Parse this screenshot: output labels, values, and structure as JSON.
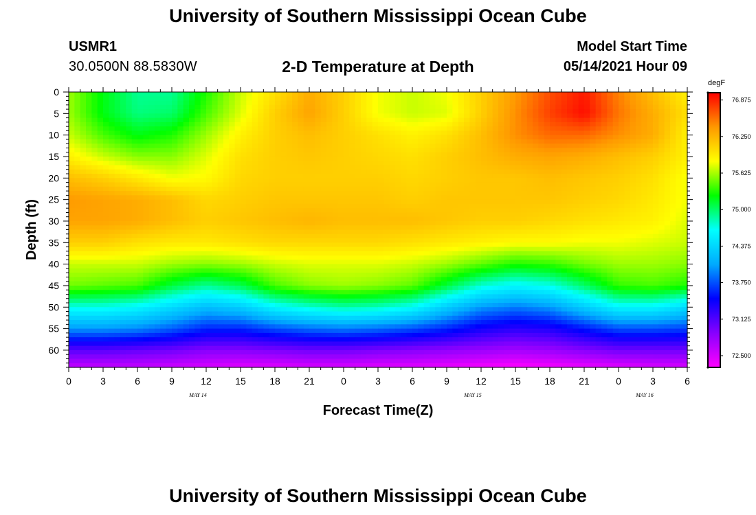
{
  "page": {
    "title_top": "University of Southern Mississippi Ocean Cube",
    "title_bottom": "University of Southern Mississippi Ocean Cube",
    "station_id": "USMR1",
    "station_coords": "30.0500N  88.5830W",
    "chart_title": "2-D Temperature at Depth",
    "start_label": "Model Start Time",
    "start_value": "05/14/2021 Hour 09"
  },
  "chart_data": {
    "type": "heatmap",
    "title": "2-D Temperature at Depth",
    "xlabel": "Forecast Time(Z)",
    "ylabel": "Depth (ft)",
    "x_tick_labels": [
      "0",
      "3",
      "6",
      "9",
      "12",
      "15",
      "18",
      "21",
      "0",
      "3",
      "6",
      "9",
      "12",
      "15",
      "18",
      "21",
      "0",
      "3",
      "6"
    ],
    "x_hours_from_start": [
      0,
      3,
      6,
      9,
      12,
      15,
      18,
      21,
      24,
      27,
      30,
      33,
      36,
      39,
      42,
      45,
      48,
      51,
      54
    ],
    "date_labels": [
      {
        "text": "MAY 14",
        "hour": 12
      },
      {
        "text": "MAY 15",
        "hour": 36
      },
      {
        "text": "MAY 16",
        "hour": 51
      }
    ],
    "y_ticks": [
      0,
      5,
      10,
      15,
      20,
      25,
      30,
      35,
      40,
      45,
      50,
      55,
      60
    ],
    "ylim": [
      0,
      64
    ],
    "xlim": [
      0,
      54
    ],
    "colorbar": {
      "unit": "degF",
      "tick_labels": [
        "76.875",
        "76.250",
        "75.625",
        "75.000",
        "74.375",
        "73.750",
        "73.125",
        "72.500"
      ],
      "range": [
        72.3,
        77.0
      ],
      "colors": [
        "#ff00ff",
        "#8800ff",
        "#0000ff",
        "#00aaff",
        "#00ffff",
        "#00ff00",
        "#ffff00",
        "#ff9900",
        "#ff0000"
      ]
    },
    "temperature_degF": {
      "times_h": [
        0,
        3,
        6,
        9,
        12,
        15,
        18,
        21,
        24,
        27,
        30,
        33,
        36,
        39,
        42,
        45,
        48,
        51,
        54
      ],
      "depths_ft": [
        0,
        5,
        10,
        15,
        20,
        25,
        30,
        35,
        40,
        45,
        50,
        55,
        60,
        64
      ],
      "values": [
        [
          75.6,
          75.2,
          74.9,
          74.9,
          75.3,
          75.7,
          76.0,
          76.3,
          76.1,
          75.8,
          75.7,
          75.8,
          76.1,
          76.4,
          76.7,
          76.9,
          76.5,
          76.2,
          75.9
        ],
        [
          75.6,
          75.2,
          74.95,
          75.0,
          75.4,
          75.75,
          76.1,
          76.35,
          76.1,
          75.8,
          75.7,
          75.75,
          76.1,
          76.45,
          76.75,
          76.95,
          76.55,
          76.3,
          76.0
        ],
        [
          75.7,
          75.4,
          75.2,
          75.3,
          75.6,
          75.9,
          76.1,
          76.2,
          76.1,
          76.0,
          75.9,
          76.0,
          76.2,
          76.45,
          76.6,
          76.6,
          76.45,
          76.3,
          75.9
        ],
        [
          75.9,
          75.7,
          75.55,
          75.55,
          75.75,
          76.0,
          76.1,
          76.15,
          76.1,
          76.05,
          76.0,
          76.1,
          76.2,
          76.3,
          76.35,
          76.3,
          76.2,
          76.1,
          75.9
        ],
        [
          76.2,
          76.1,
          75.95,
          75.8,
          75.85,
          76.05,
          76.1,
          76.1,
          76.1,
          76.1,
          76.05,
          76.1,
          76.15,
          76.15,
          76.2,
          76.15,
          76.1,
          76.0,
          75.8
        ],
        [
          76.4,
          76.35,
          76.3,
          76.2,
          76.05,
          76.1,
          76.15,
          76.15,
          76.15,
          76.15,
          76.1,
          76.15,
          76.15,
          76.15,
          76.15,
          76.1,
          76.05,
          75.95,
          75.8
        ],
        [
          76.35,
          76.35,
          76.3,
          76.2,
          76.1,
          76.15,
          76.2,
          76.25,
          76.2,
          76.2,
          76.2,
          76.15,
          76.1,
          76.1,
          76.05,
          76.0,
          75.95,
          75.9,
          75.75
        ],
        [
          76.1,
          76.1,
          76.0,
          75.95,
          75.95,
          76.0,
          76.05,
          76.05,
          76.05,
          76.05,
          76.0,
          75.95,
          75.9,
          75.85,
          75.85,
          75.8,
          75.8,
          75.75,
          75.7
        ],
        [
          75.7,
          75.7,
          75.7,
          75.6,
          75.55,
          75.6,
          75.7,
          75.75,
          75.75,
          75.75,
          75.7,
          75.6,
          75.45,
          75.3,
          75.35,
          75.5,
          75.6,
          75.6,
          75.55
        ],
        [
          75.5,
          75.45,
          75.4,
          75.1,
          74.9,
          75.05,
          75.4,
          75.55,
          75.6,
          75.55,
          75.45,
          75.1,
          74.75,
          74.6,
          74.7,
          75.0,
          75.35,
          75.4,
          75.3
        ],
        [
          74.7,
          74.7,
          74.6,
          74.4,
          74.2,
          74.3,
          74.6,
          74.75,
          74.85,
          74.8,
          74.65,
          74.3,
          74.0,
          73.9,
          74.0,
          74.3,
          74.6,
          74.6,
          74.4
        ],
        [
          74.0,
          74.0,
          73.95,
          73.8,
          73.6,
          73.6,
          73.75,
          73.85,
          73.9,
          73.85,
          73.75,
          73.6,
          73.4,
          73.3,
          73.35,
          73.55,
          73.75,
          73.75,
          73.7
        ],
        [
          73.1,
          73.1,
          73.05,
          73.0,
          72.9,
          72.9,
          72.95,
          73.0,
          73.0,
          72.95,
          72.9,
          72.85,
          72.8,
          72.75,
          72.8,
          72.9,
          73.0,
          73.0,
          73.0
        ],
        [
          72.6,
          72.6,
          72.6,
          72.55,
          72.5,
          72.45,
          72.45,
          72.5,
          72.5,
          72.45,
          72.45,
          72.4,
          72.35,
          72.3,
          72.35,
          72.4,
          72.45,
          72.5,
          72.5
        ]
      ]
    }
  }
}
